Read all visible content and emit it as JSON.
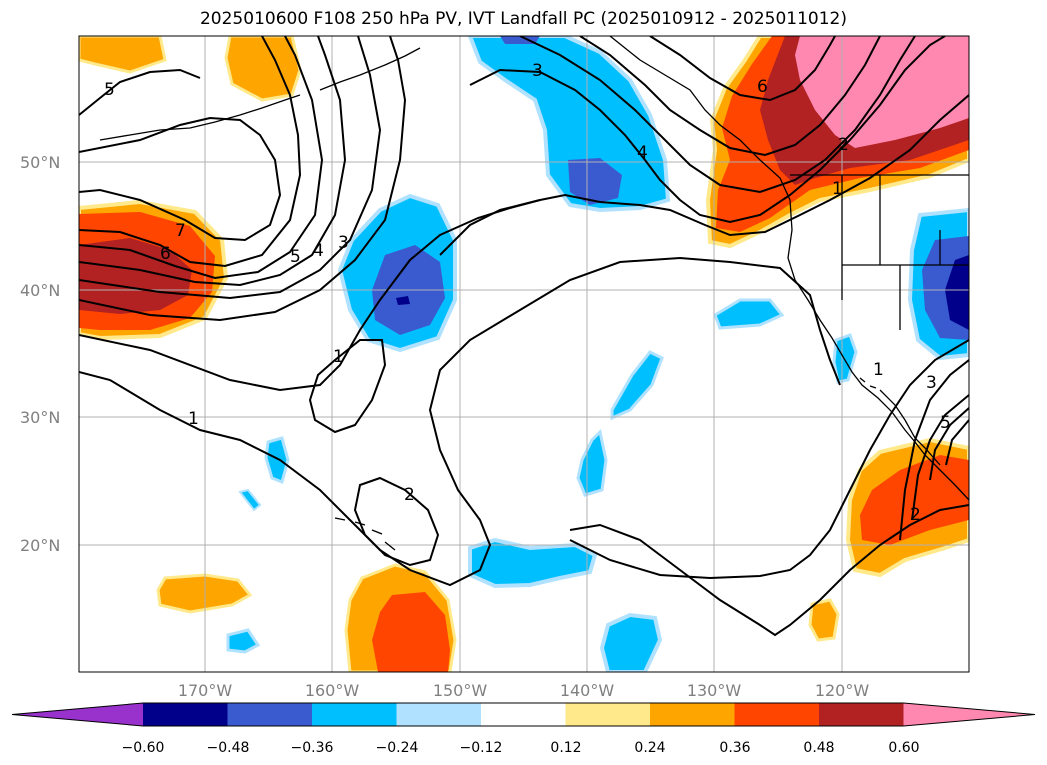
{
  "title": "2025010600 F108 250 hPa PV, IVT Landfall PC (2025010912 - 2025011012)",
  "lat_labels": [
    "50°N",
    "40°N",
    "30°N",
    "20°N"
  ],
  "lon_labels": [
    "170°W",
    "160°W",
    "150°W",
    "140°W",
    "130°W",
    "120°W"
  ],
  "colorbar": {
    "ticks": [
      "−0.60",
      "−0.48",
      "−0.36",
      "−0.24",
      "−0.12",
      "0.12",
      "0.24",
      "0.36",
      "0.48",
      "0.60"
    ],
    "colors": [
      "#9932cc",
      "#00008b",
      "#3a5bd0",
      "#00bfff",
      "#b0e2ff",
      "#ffffff",
      "#ffe98a",
      "#ffa500",
      "#ff4500",
      "#b22222",
      "#ff88b0"
    ]
  },
  "contour_labels": [
    "5",
    "3",
    "4",
    "6",
    "7",
    "5",
    "4",
    "3",
    "1",
    "1",
    "2",
    "6",
    "2",
    "1",
    "1",
    "3",
    "5",
    "2"
  ],
  "colors": {
    "land_outline": "#000000",
    "grid": "#b0b0b0"
  }
}
